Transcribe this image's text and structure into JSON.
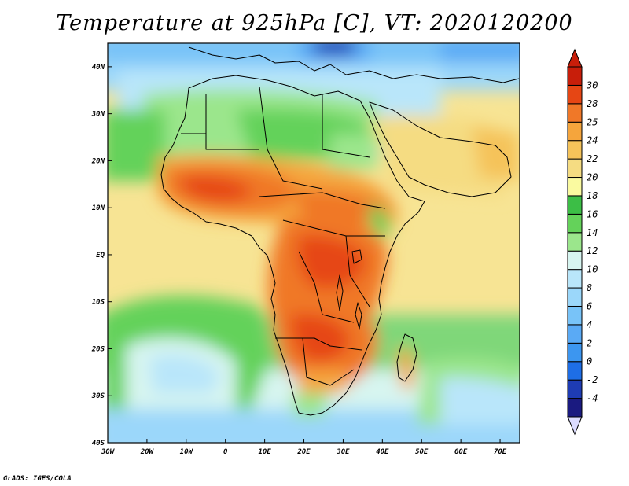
{
  "title": "Temperature at 925hPa [C], VT: 2020120200",
  "credit": "GrADS: IGES/COLA",
  "map": {
    "lon_range": [
      -30,
      75
    ],
    "lat_range": [
      -40,
      45
    ],
    "x_ticks": [
      {
        "value": -30,
        "label": "30W"
      },
      {
        "value": -20,
        "label": "20W"
      },
      {
        "value": -10,
        "label": "10W"
      },
      {
        "value": 0,
        "label": "0"
      },
      {
        "value": 10,
        "label": "10E"
      },
      {
        "value": 20,
        "label": "20E"
      },
      {
        "value": 30,
        "label": "30E"
      },
      {
        "value": 40,
        "label": "40E"
      },
      {
        "value": 50,
        "label": "50E"
      },
      {
        "value": 60,
        "label": "60E"
      },
      {
        "value": 70,
        "label": "70E"
      }
    ],
    "y_ticks": [
      {
        "value": 40,
        "label": "40N"
      },
      {
        "value": 30,
        "label": "30N"
      },
      {
        "value": 20,
        "label": "20N"
      },
      {
        "value": 10,
        "label": "10N"
      },
      {
        "value": 0,
        "label": "EQ"
      },
      {
        "value": -10,
        "label": "10S"
      },
      {
        "value": -20,
        "label": "20S"
      },
      {
        "value": -30,
        "label": "30S"
      },
      {
        "value": -40,
        "label": "40S"
      }
    ]
  },
  "colorbar": {
    "levels": [
      "-4",
      "-2",
      "0",
      "2",
      "4",
      "6",
      "8",
      "10",
      "12",
      "14",
      "16",
      "18",
      "20",
      "22",
      "24",
      "25",
      "28",
      "30"
    ],
    "colors": [
      "#1a1a80",
      "#1e3cb4",
      "#1e6ee6",
      "#3c96f0",
      "#5aaaf5",
      "#78c3f8",
      "#9bd7fa",
      "#b9e6fa",
      "#d7f5f0",
      "#9be68c",
      "#64d25a",
      "#3cbe46",
      "#fafaa0",
      "#f5dc82",
      "#f5c35a",
      "#f5a53c",
      "#f07828",
      "#e64614",
      "#c81e0a"
    ],
    "under_color": "#dcdcff"
  }
}
